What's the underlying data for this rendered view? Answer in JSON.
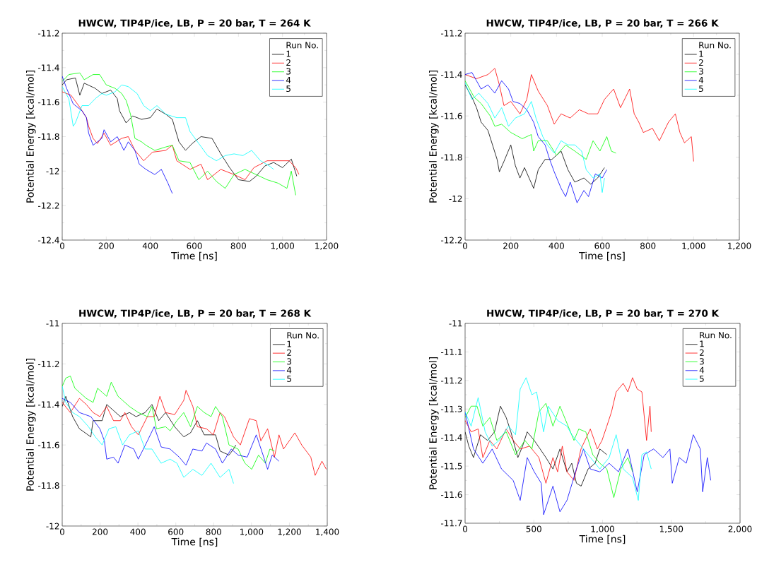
{
  "chart_data": [
    {
      "type": "line",
      "title": "HWCW, TIP4P/ice, LB, P = 20 bar, T = 264 K",
      "xlabel": "Time [ns]",
      "ylabel": "Potential Energy [kcal/mol]",
      "legend_title": "Run No.",
      "legend": "top right",
      "xlim": [
        0,
        1200
      ],
      "xticks": [
        0,
        200,
        400,
        600,
        800,
        {
          "value": 1000,
          "label": "1,000"
        },
        {
          "value": 1200,
          "label": "1,200"
        }
      ],
      "ylim": [
        -12.4,
        -11.2
      ],
      "yticks": [
        -12.4,
        -12.2,
        -12,
        -11.8,
        -11.6,
        -11.4,
        -11.2
      ],
      "series": [
        {
          "name": "1",
          "color": "#000000",
          "x": [
            0,
            20,
            60,
            80,
            100,
            150,
            180,
            220,
            250,
            260,
            290,
            320,
            360,
            400,
            430,
            470,
            500,
            530,
            560,
            590,
            630,
            680,
            720,
            760,
            800,
            850,
            880,
            920,
            960,
            1000,
            1040,
            1065
          ],
          "values": [
            -11.5,
            -11.47,
            -11.46,
            -11.56,
            -11.49,
            -11.52,
            -11.55,
            -11.53,
            -11.58,
            -11.65,
            -11.72,
            -11.68,
            -11.7,
            -11.69,
            -11.64,
            -11.67,
            -11.7,
            -11.83,
            -11.88,
            -11.84,
            -11.8,
            -11.81,
            -11.9,
            -11.98,
            -12.05,
            -12.06,
            -12.03,
            -11.97,
            -11.95,
            -11.98,
            -11.93,
            -12.03
          ]
        },
        {
          "name": "2",
          "color": "#ff0000",
          "x": [
            0,
            40,
            80,
            110,
            120,
            140,
            160,
            190,
            220,
            270,
            300,
            330,
            370,
            410,
            470,
            500,
            520,
            580,
            630,
            660,
            720,
            780,
            830,
            870,
            930,
            980,
            1030,
            1060,
            1075
          ],
          "values": [
            -11.54,
            -11.56,
            -11.63,
            -11.69,
            -11.74,
            -11.81,
            -11.84,
            -11.78,
            -11.85,
            -11.81,
            -11.8,
            -11.88,
            -11.94,
            -11.89,
            -11.88,
            -11.85,
            -11.94,
            -11.99,
            -11.96,
            -12.05,
            -11.99,
            -12.02,
            -12.05,
            -11.98,
            -11.94,
            -11.94,
            -11.94,
            -11.98,
            -12.02
          ]
        },
        {
          "name": "3",
          "color": "#00ff00",
          "x": [
            0,
            30,
            80,
            100,
            140,
            170,
            200,
            240,
            270,
            290,
            310,
            330,
            360,
            380,
            420,
            470,
            500,
            530,
            580,
            620,
            660,
            700,
            740,
            780,
            830,
            880,
            930,
            980,
            1020,
            1040,
            1060
          ],
          "values": [
            -11.48,
            -11.44,
            -11.43,
            -11.47,
            -11.44,
            -11.44,
            -11.5,
            -11.52,
            -11.55,
            -11.59,
            -11.67,
            -11.81,
            -11.83,
            -11.85,
            -11.88,
            -11.86,
            -11.85,
            -11.94,
            -11.95,
            -12.05,
            -12.0,
            -12.06,
            -12.1,
            -12.02,
            -11.99,
            -12.02,
            -12.05,
            -12.07,
            -12.1,
            -12.0,
            -12.14
          ]
        },
        {
          "name": "4",
          "color": "#0000ff",
          "x": [
            0,
            20,
            50,
            90,
            110,
            120,
            140,
            180,
            190,
            220,
            250,
            280,
            300,
            330,
            350,
            380,
            420,
            450,
            480,
            500
          ],
          "values": [
            -11.45,
            -11.52,
            -11.61,
            -11.65,
            -11.69,
            -11.78,
            -11.85,
            -11.81,
            -11.76,
            -11.83,
            -11.8,
            -11.88,
            -11.83,
            -11.88,
            -11.96,
            -11.99,
            -12.02,
            -11.99,
            -12.07,
            -12.13
          ]
        },
        {
          "name": "5",
          "color": "#00ffff",
          "x": [
            0,
            30,
            50,
            60,
            90,
            120,
            150,
            180,
            200,
            240,
            270,
            300,
            340,
            370,
            400,
            430,
            470,
            520,
            560,
            580,
            620,
            660,
            700,
            740,
            780,
            820,
            860,
            900,
            940,
            960
          ],
          "values": [
            -11.51,
            -11.58,
            -11.74,
            -11.72,
            -11.62,
            -11.62,
            -11.58,
            -11.55,
            -11.56,
            -11.54,
            -11.5,
            -11.51,
            -11.55,
            -11.62,
            -11.65,
            -11.62,
            -11.67,
            -11.69,
            -11.69,
            -11.77,
            -11.84,
            -11.91,
            -11.94,
            -11.91,
            -11.9,
            -11.91,
            -11.88,
            -11.94,
            -11.97,
            -11.99
          ]
        }
      ]
    },
    {
      "type": "line",
      "title": "HWCW, TIP4P/ice, LB, P = 20 bar, T = 266 K",
      "xlabel": "Time [ns]",
      "ylabel": "Potential Energy [kcal/mol]",
      "legend_title": "Run No.",
      "legend": "top right",
      "xlim": [
        0,
        1200
      ],
      "xticks": [
        0,
        200,
        400,
        600,
        800,
        {
          "value": 1000,
          "label": "1,000"
        },
        {
          "value": 1200,
          "label": "1,200"
        }
      ],
      "ylim": [
        -12.2,
        -11.2
      ],
      "yticks": [
        -12.2,
        -12,
        -11.8,
        -11.6,
        -11.4,
        -11.2
      ],
      "series": [
        {
          "name": "1",
          "color": "#000000",
          "x": [
            0,
            30,
            50,
            70,
            100,
            120,
            140,
            150,
            170,
            200,
            220,
            240,
            260,
            280,
            300,
            320,
            350,
            380,
            420,
            450,
            480,
            520,
            550,
            580,
            610
          ],
          "values": [
            -11.45,
            -11.51,
            -11.56,
            -11.63,
            -11.67,
            -11.74,
            -11.81,
            -11.87,
            -11.82,
            -11.74,
            -11.84,
            -11.9,
            -11.85,
            -11.9,
            -11.95,
            -11.86,
            -11.81,
            -11.81,
            -11.77,
            -11.86,
            -11.92,
            -11.9,
            -11.93,
            -11.9,
            -11.85
          ]
        },
        {
          "name": "2",
          "color": "#ff0000",
          "x": [
            0,
            50,
            100,
            130,
            150,
            170,
            200,
            240,
            270,
            290,
            320,
            360,
            390,
            420,
            460,
            500,
            540,
            580,
            610,
            650,
            680,
            720,
            740,
            760,
            780,
            820,
            850,
            890,
            920,
            940,
            960,
            990,
            1000
          ],
          "values": [
            -11.4,
            -11.42,
            -11.4,
            -11.37,
            -11.45,
            -11.55,
            -11.53,
            -11.59,
            -11.52,
            -11.4,
            -11.48,
            -11.55,
            -11.64,
            -11.59,
            -11.61,
            -11.57,
            -11.59,
            -11.59,
            -11.52,
            -11.47,
            -11.56,
            -11.47,
            -11.59,
            -11.63,
            -11.68,
            -11.66,
            -11.72,
            -11.63,
            -11.59,
            -11.68,
            -11.73,
            -11.7,
            -11.82
          ]
        },
        {
          "name": "3",
          "color": "#00ff00",
          "x": [
            0,
            40,
            70,
            110,
            130,
            160,
            200,
            250,
            290,
            300,
            320,
            360,
            400,
            440,
            480,
            530,
            560,
            590,
            620,
            640,
            660
          ],
          "values": [
            -11.43,
            -11.51,
            -11.54,
            -11.6,
            -11.65,
            -11.64,
            -11.68,
            -11.71,
            -11.69,
            -11.77,
            -11.72,
            -11.72,
            -11.79,
            -11.74,
            -11.77,
            -11.81,
            -11.72,
            -11.77,
            -11.7,
            -11.77,
            -11.78
          ]
        },
        {
          "name": "4",
          "color": "#0000ff",
          "x": [
            0,
            30,
            70,
            100,
            130,
            160,
            190,
            210,
            240,
            270,
            300,
            320,
            350,
            370,
            390,
            420,
            440,
            460,
            490,
            520,
            540,
            570,
            600,
            620
          ],
          "values": [
            -11.4,
            -11.39,
            -11.47,
            -11.45,
            -11.49,
            -11.43,
            -11.47,
            -11.53,
            -11.54,
            -11.57,
            -11.63,
            -11.7,
            -11.74,
            -11.81,
            -11.87,
            -11.95,
            -11.99,
            -11.92,
            -12.02,
            -11.96,
            -11.99,
            -11.88,
            -11.9,
            -11.86
          ]
        },
        {
          "name": "5",
          "color": "#00ffff",
          "x": [
            0,
            30,
            60,
            100,
            130,
            160,
            190,
            220,
            260,
            290,
            310,
            340,
            360,
            390,
            420,
            450,
            480,
            510,
            530,
            560,
            590,
            600,
            610
          ],
          "values": [
            -11.44,
            -11.52,
            -11.49,
            -11.54,
            -11.61,
            -11.56,
            -11.65,
            -11.61,
            -11.59,
            -11.53,
            -11.61,
            -11.7,
            -11.74,
            -11.78,
            -11.72,
            -11.74,
            -11.74,
            -11.77,
            -11.86,
            -11.9,
            -11.88,
            -11.97,
            -11.9
          ]
        }
      ]
    },
    {
      "type": "line",
      "title": "HWCW, TIP4P/ice, LB, P = 20 bar, T = 268 K",
      "xlabel": "Time [ns]",
      "ylabel": "Potential Energy [kcal/mol]",
      "legend_title": "Run No.",
      "legend": "top right",
      "xlim": [
        0,
        1400
      ],
      "xticks": [
        0,
        200,
        400,
        600,
        800,
        {
          "value": 1000,
          "label": "1,000"
        },
        {
          "value": 1200,
          "label": "1,200"
        },
        {
          "value": 1400,
          "label": "1,400"
        }
      ],
      "ylim": [
        -12,
        -11
      ],
      "yticks": [
        -12,
        -11.8,
        -11.6,
        -11.4,
        -11.2,
        -11
      ],
      "series": [
        {
          "name": "1",
          "color": "#000000",
          "x": [
            0,
            19,
            55,
            91,
            151,
            163,
            211,
            235,
            271,
            307,
            355,
            390,
            438,
            474,
            510,
            546,
            594,
            642,
            678,
            714,
            750,
            810,
            834,
            881,
            905,
            917
          ],
          "values": [
            -11.41,
            -11.36,
            -11.46,
            -11.52,
            -11.56,
            -11.48,
            -11.48,
            -11.4,
            -11.43,
            -11.46,
            -11.44,
            -11.46,
            -11.44,
            -11.4,
            -11.48,
            -11.44,
            -11.51,
            -11.56,
            -11.54,
            -11.48,
            -11.55,
            -11.55,
            -11.63,
            -11.65,
            -11.62,
            -11.6
          ]
        },
        {
          "name": "2",
          "color": "#ff0000",
          "x": [
            0,
            43,
            91,
            127,
            163,
            199,
            235,
            271,
            307,
            331,
            366,
            402,
            450,
            486,
            516,
            546,
            594,
            642,
            654,
            690,
            714,
            762,
            798,
            834,
            857,
            905,
            941,
            989,
            1025,
            1049,
            1085,
            1121,
            1145,
            1169,
            1229,
            1265,
            1313,
            1336,
            1372,
            1395
          ],
          "values": [
            -11.39,
            -11.44,
            -11.37,
            -11.4,
            -11.44,
            -11.46,
            -11.41,
            -11.48,
            -11.48,
            -11.44,
            -11.51,
            -11.55,
            -11.46,
            -11.46,
            -11.36,
            -11.44,
            -11.45,
            -11.38,
            -11.33,
            -11.41,
            -11.51,
            -11.52,
            -11.55,
            -11.44,
            -11.46,
            -11.56,
            -11.6,
            -11.47,
            -11.48,
            -11.58,
            -11.52,
            -11.66,
            -11.55,
            -11.62,
            -11.54,
            -11.6,
            -11.66,
            -11.75,
            -11.68,
            -11.72
          ]
        },
        {
          "name": "3",
          "color": "#00ff00",
          "x": [
            0,
            19,
            43,
            67,
            91,
            127,
            163,
            187,
            211,
            235,
            259,
            295,
            319,
            355,
            402,
            450,
            474,
            498,
            546,
            570,
            606,
            642,
            678,
            714,
            750,
            786,
            810,
            846,
            881,
            929,
            965,
            1001,
            1037,
            1073,
            1097,
            1121
          ],
          "values": [
            -11.31,
            -11.27,
            -11.26,
            -11.32,
            -11.34,
            -11.37,
            -11.39,
            -11.32,
            -11.34,
            -11.36,
            -11.29,
            -11.36,
            -11.38,
            -11.41,
            -11.44,
            -11.46,
            -11.41,
            -11.52,
            -11.51,
            -11.53,
            -11.48,
            -11.44,
            -11.51,
            -11.41,
            -11.44,
            -11.46,
            -11.41,
            -11.46,
            -11.6,
            -11.62,
            -11.69,
            -11.72,
            -11.65,
            -11.69,
            -11.62,
            -11.63
          ]
        },
        {
          "name": "4",
          "color": "#0000ff",
          "x": [
            0,
            43,
            91,
            151,
            199,
            223,
            235,
            271,
            295,
            331,
            378,
            402,
            450,
            486,
            523,
            570,
            618,
            654,
            690,
            738,
            762,
            810,
            846,
            893,
            929,
            977,
            1025,
            1061,
            1085,
            1109,
            1145
          ],
          "values": [
            -11.37,
            -11.39,
            -11.44,
            -11.46,
            -11.52,
            -11.58,
            -11.67,
            -11.66,
            -11.69,
            -11.6,
            -11.62,
            -11.67,
            -11.58,
            -11.51,
            -11.61,
            -11.62,
            -11.66,
            -11.7,
            -11.62,
            -11.63,
            -11.59,
            -11.62,
            -11.69,
            -11.62,
            -11.65,
            -11.66,
            -11.55,
            -11.65,
            -11.72,
            -11.65,
            -11.68
          ]
        },
        {
          "name": "5",
          "color": "#00ffff",
          "x": [
            0,
            19,
            55,
            91,
            139,
            175,
            211,
            247,
            283,
            319,
            355,
            402,
            438,
            474,
            522,
            570,
            606,
            642,
            690,
            738,
            786,
            834,
            881,
            905
          ],
          "values": [
            -11.31,
            -11.39,
            -11.44,
            -11.46,
            -11.51,
            -11.56,
            -11.6,
            -11.52,
            -11.51,
            -11.6,
            -11.55,
            -11.53,
            -11.62,
            -11.62,
            -11.69,
            -11.67,
            -11.69,
            -11.76,
            -11.72,
            -11.75,
            -11.69,
            -11.76,
            -11.72,
            -11.79
          ]
        }
      ]
    },
    {
      "type": "line",
      "title": "HWCW, TIP4P/ice, LB, P = 20 bar, T = 270 K",
      "xlabel": "Time [ns]",
      "ylabel": "Potential Energy [kcal/mol]",
      "legend_title": "Run No.",
      "legend": "top right",
      "xlim": [
        0,
        2000
      ],
      "xticks": [
        0,
        500,
        {
          "value": 1000,
          "label": "1,000"
        },
        {
          "value": 1500,
          "label": "1,500"
        },
        {
          "value": 2000,
          "label": "2,000"
        }
      ],
      "ylim": [
        -11.7,
        -11
      ],
      "yticks": [
        -11.7,
        -11.6,
        -11.5,
        -11.4,
        -11.3,
        -11.2,
        -11.1,
        -11
      ],
      "series": [
        {
          "name": "1",
          "color": "#000000",
          "x": [
            0,
            27,
            61,
            112,
            163,
            214,
            257,
            299,
            333,
            384,
            418,
            452,
            503,
            546,
            588,
            639,
            690,
            741,
            776,
            810,
            844,
            895,
            946,
            980,
            1031
          ],
          "values": [
            -11.38,
            -11.43,
            -11.47,
            -11.39,
            -11.41,
            -11.38,
            -11.29,
            -11.33,
            -11.38,
            -11.47,
            -11.43,
            -11.38,
            -11.41,
            -11.44,
            -11.47,
            -11.51,
            -11.44,
            -11.52,
            -11.49,
            -11.56,
            -11.57,
            -11.51,
            -11.49,
            -11.44,
            -11.46
          ]
        },
        {
          "name": "2",
          "color": "#ff0000",
          "x": [
            0,
            44,
            95,
            129,
            180,
            231,
            299,
            350,
            401,
            469,
            537,
            588,
            639,
            673,
            707,
            741,
            792,
            843,
            911,
            962,
            996,
            1031,
            1065,
            1099,
            1150,
            1184,
            1218,
            1252,
            1286,
            1320,
            1345,
            1354
          ],
          "values": [
            -11.34,
            -11.38,
            -11.37,
            -11.47,
            -11.41,
            -11.44,
            -11.37,
            -11.41,
            -11.44,
            -11.43,
            -11.47,
            -11.56,
            -11.47,
            -11.52,
            -11.43,
            -11.52,
            -11.55,
            -11.44,
            -11.37,
            -11.44,
            -11.41,
            -11.36,
            -11.31,
            -11.24,
            -11.21,
            -11.24,
            -11.19,
            -11.23,
            -11.24,
            -11.41,
            -11.29,
            -11.38
          ]
        },
        {
          "name": "3",
          "color": "#00ff00",
          "x": [
            0,
            44,
            87,
            129,
            180,
            231,
            299,
            367,
            435,
            486,
            537,
            588,
            639,
            690,
            741,
            792,
            827,
            878,
            929,
            980,
            1031,
            1082,
            1133,
            1184,
            1218
          ],
          "values": [
            -11.33,
            -11.29,
            -11.29,
            -11.36,
            -11.33,
            -11.41,
            -11.38,
            -11.46,
            -11.41,
            -11.44,
            -11.31,
            -11.28,
            -11.36,
            -11.29,
            -11.35,
            -11.41,
            -11.37,
            -11.38,
            -11.46,
            -11.49,
            -11.51,
            -11.61,
            -11.51,
            -11.47,
            -11.52
          ]
        },
        {
          "name": "4",
          "color": "#0000ff",
          "x": [
            0,
            61,
            129,
            197,
            265,
            350,
            401,
            452,
            503,
            554,
            571,
            639,
            690,
            741,
            810,
            861,
            911,
            980,
            1048,
            1116,
            1184,
            1252,
            1303,
            1371,
            1439,
            1490,
            1507,
            1558,
            1609,
            1660,
            1711,
            1728,
            1762,
            1787
          ],
          "values": [
            -11.31,
            -11.44,
            -11.49,
            -11.44,
            -11.51,
            -11.55,
            -11.62,
            -11.47,
            -11.52,
            -11.56,
            -11.67,
            -11.57,
            -11.66,
            -11.62,
            -11.51,
            -11.44,
            -11.51,
            -11.52,
            -11.49,
            -11.52,
            -11.44,
            -11.59,
            -11.46,
            -11.44,
            -11.47,
            -11.44,
            -11.56,
            -11.47,
            -11.49,
            -11.39,
            -11.44,
            -11.59,
            -11.47,
            -11.55
          ]
        },
        {
          "name": "5",
          "color": "#00ffff",
          "x": [
            0,
            44,
            95,
            146,
            197,
            248,
            316,
            367,
            401,
            444,
            486,
            520,
            571,
            605,
            673,
            741,
            776,
            844,
            912,
            980,
            1048,
            1099,
            1150,
            1218,
            1260,
            1286,
            1320,
            1354
          ],
          "values": [
            -11.31,
            -11.36,
            -11.26,
            -11.38,
            -11.43,
            -11.41,
            -11.36,
            -11.39,
            -11.23,
            -11.19,
            -11.25,
            -11.24,
            -11.38,
            -11.29,
            -11.34,
            -11.36,
            -11.39,
            -11.43,
            -11.47,
            -11.51,
            -11.47,
            -11.39,
            -11.51,
            -11.54,
            -11.62,
            -11.46,
            -11.45,
            -11.51
          ]
        }
      ]
    }
  ]
}
